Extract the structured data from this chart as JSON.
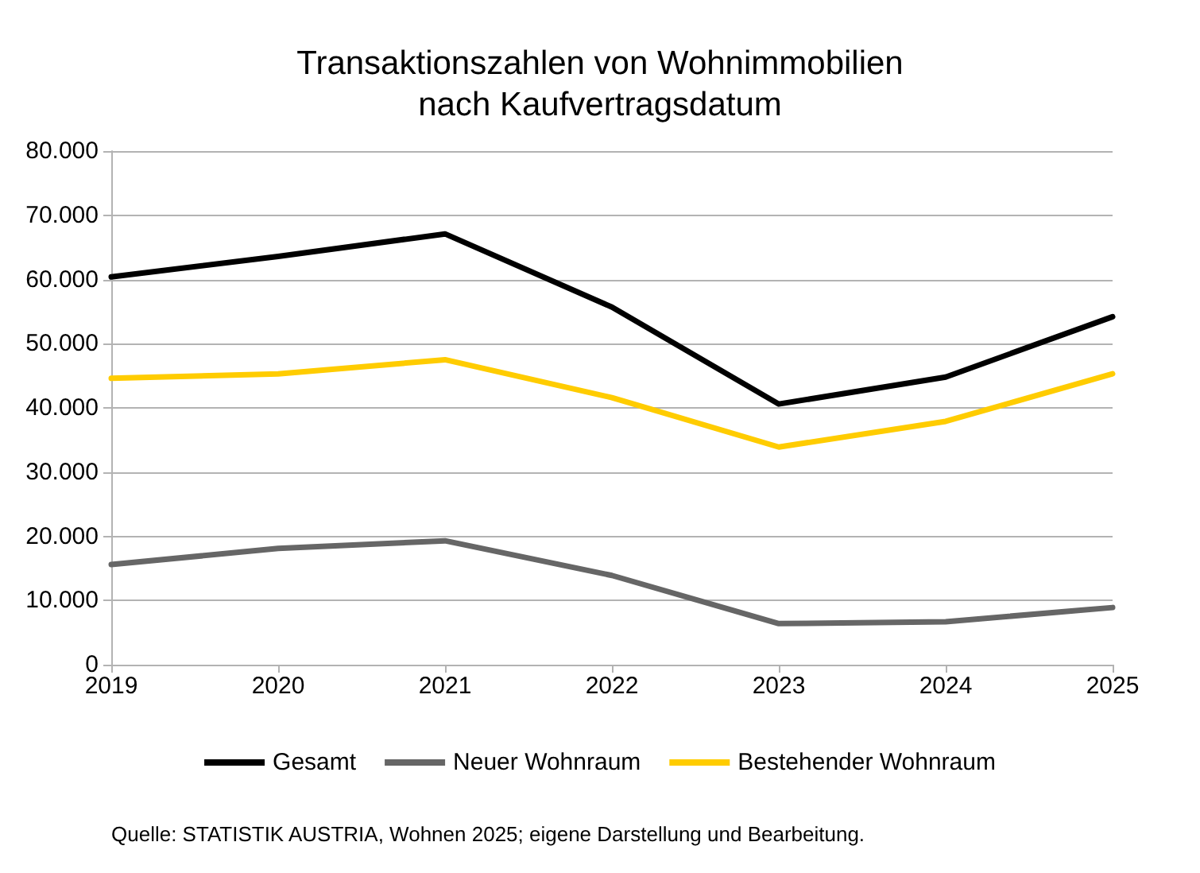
{
  "chart_data": {
    "type": "line",
    "title": "Transaktionszahlen von Wohnimmobilien\nnach Kaufvertragsdatum",
    "categories": [
      "2019",
      "2020",
      "2021",
      "2022",
      "2023",
      "2024",
      "2025"
    ],
    "series": [
      {
        "name": "Gesamt",
        "color": "#000000",
        "values": [
          60400,
          63600,
          67100,
          55700,
          40600,
          44800,
          54200
        ]
      },
      {
        "name": "Neuer Wohnraum",
        "color": "#666666",
        "values": [
          15600,
          18100,
          19300,
          13900,
          6400,
          6700,
          8900
        ]
      },
      {
        "name": "Bestehender Wohnraum",
        "color": "#ffcc00",
        "values": [
          44600,
          45300,
          47500,
          41600,
          33900,
          37900,
          45300
        ]
      }
    ],
    "ylim": [
      0,
      80000
    ],
    "yticks": [
      0,
      {
        "value": 10000,
        "label": "10.000"
      },
      {
        "value": 20000,
        "label": "20.000"
      },
      {
        "value": 30000,
        "label": "30.000"
      },
      {
        "value": 40000,
        "label": "40.000"
      },
      {
        "value": 50000,
        "label": "50.000"
      },
      {
        "value": 60000,
        "label": "60.000"
      },
      {
        "value": 70000,
        "label": "70.000"
      },
      {
        "value": 80000,
        "label": "80.000"
      }
    ],
    "grid": "y",
    "legend": "bottom",
    "marker": "none",
    "line_style": "solid",
    "annotations": [
      "Quelle: STATISTIK AUSTRIA, Wohnen 2025; eigene Darstellung und Bearbeitung."
    ]
  }
}
